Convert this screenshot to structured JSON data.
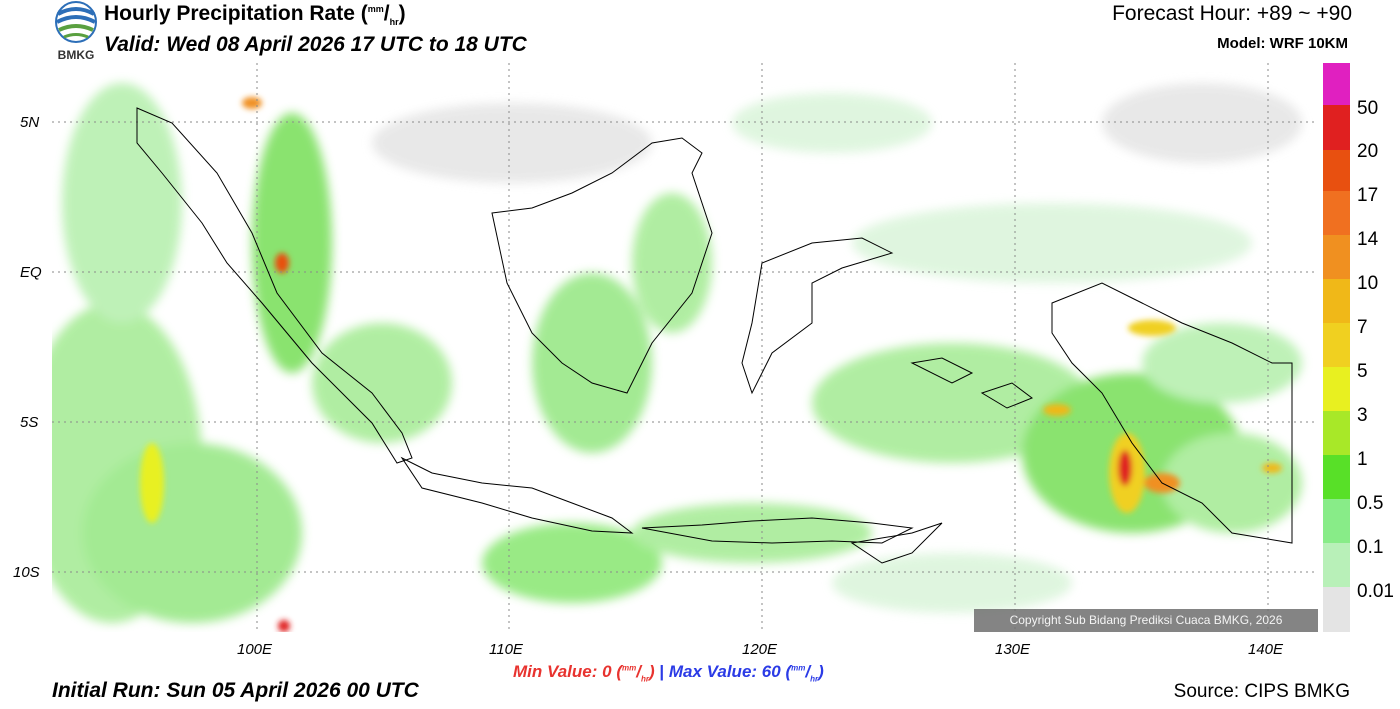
{
  "header": {
    "title": "Hourly Precipitation Rate (",
    "unit_num": "mm",
    "unit_den": "hr",
    "title_close": ")",
    "valid": "Valid: Wed 08 April 2026 17 UTC to 18 UTC",
    "forecast_hour": "Forecast Hour: +89 ~ +90",
    "model": "Model: WRF 10KM",
    "logo_text": "BMKG"
  },
  "axes": {
    "lat_labels": [
      "5N",
      "EQ",
      "5S",
      "10S"
    ],
    "lon_labels": [
      "100E",
      "110E",
      "120E",
      "130E",
      "140E"
    ]
  },
  "legend": {
    "labels": [
      "50",
      "20",
      "17",
      "14",
      "10",
      "7",
      "5",
      "3",
      "1",
      "0.5",
      "0.1",
      "0.01"
    ],
    "colors": [
      "#e020c0",
      "#e02020",
      "#e85010",
      "#f07020",
      "#f09020",
      "#f0b818",
      "#f0d020",
      "#e8f020",
      "#a8e828",
      "#58e028",
      "#88ec88",
      "#b8f0b8",
      "#dcf5dc",
      "#e4e4e4"
    ]
  },
  "stats": {
    "min_label": "Min Value:",
    "min_value": "0",
    "max_label": "Max Value:",
    "max_value": "60",
    "separator": "|",
    "unit_num": "mm",
    "unit_den": "hr"
  },
  "footer": {
    "initial_run": "Initial Run: Sun 05 April 2026 00 UTC",
    "source": "Source: CIPS BMKG",
    "copyright": "Copyright Sub Bidang Prediksi Cuaca BMKG, 2026"
  }
}
